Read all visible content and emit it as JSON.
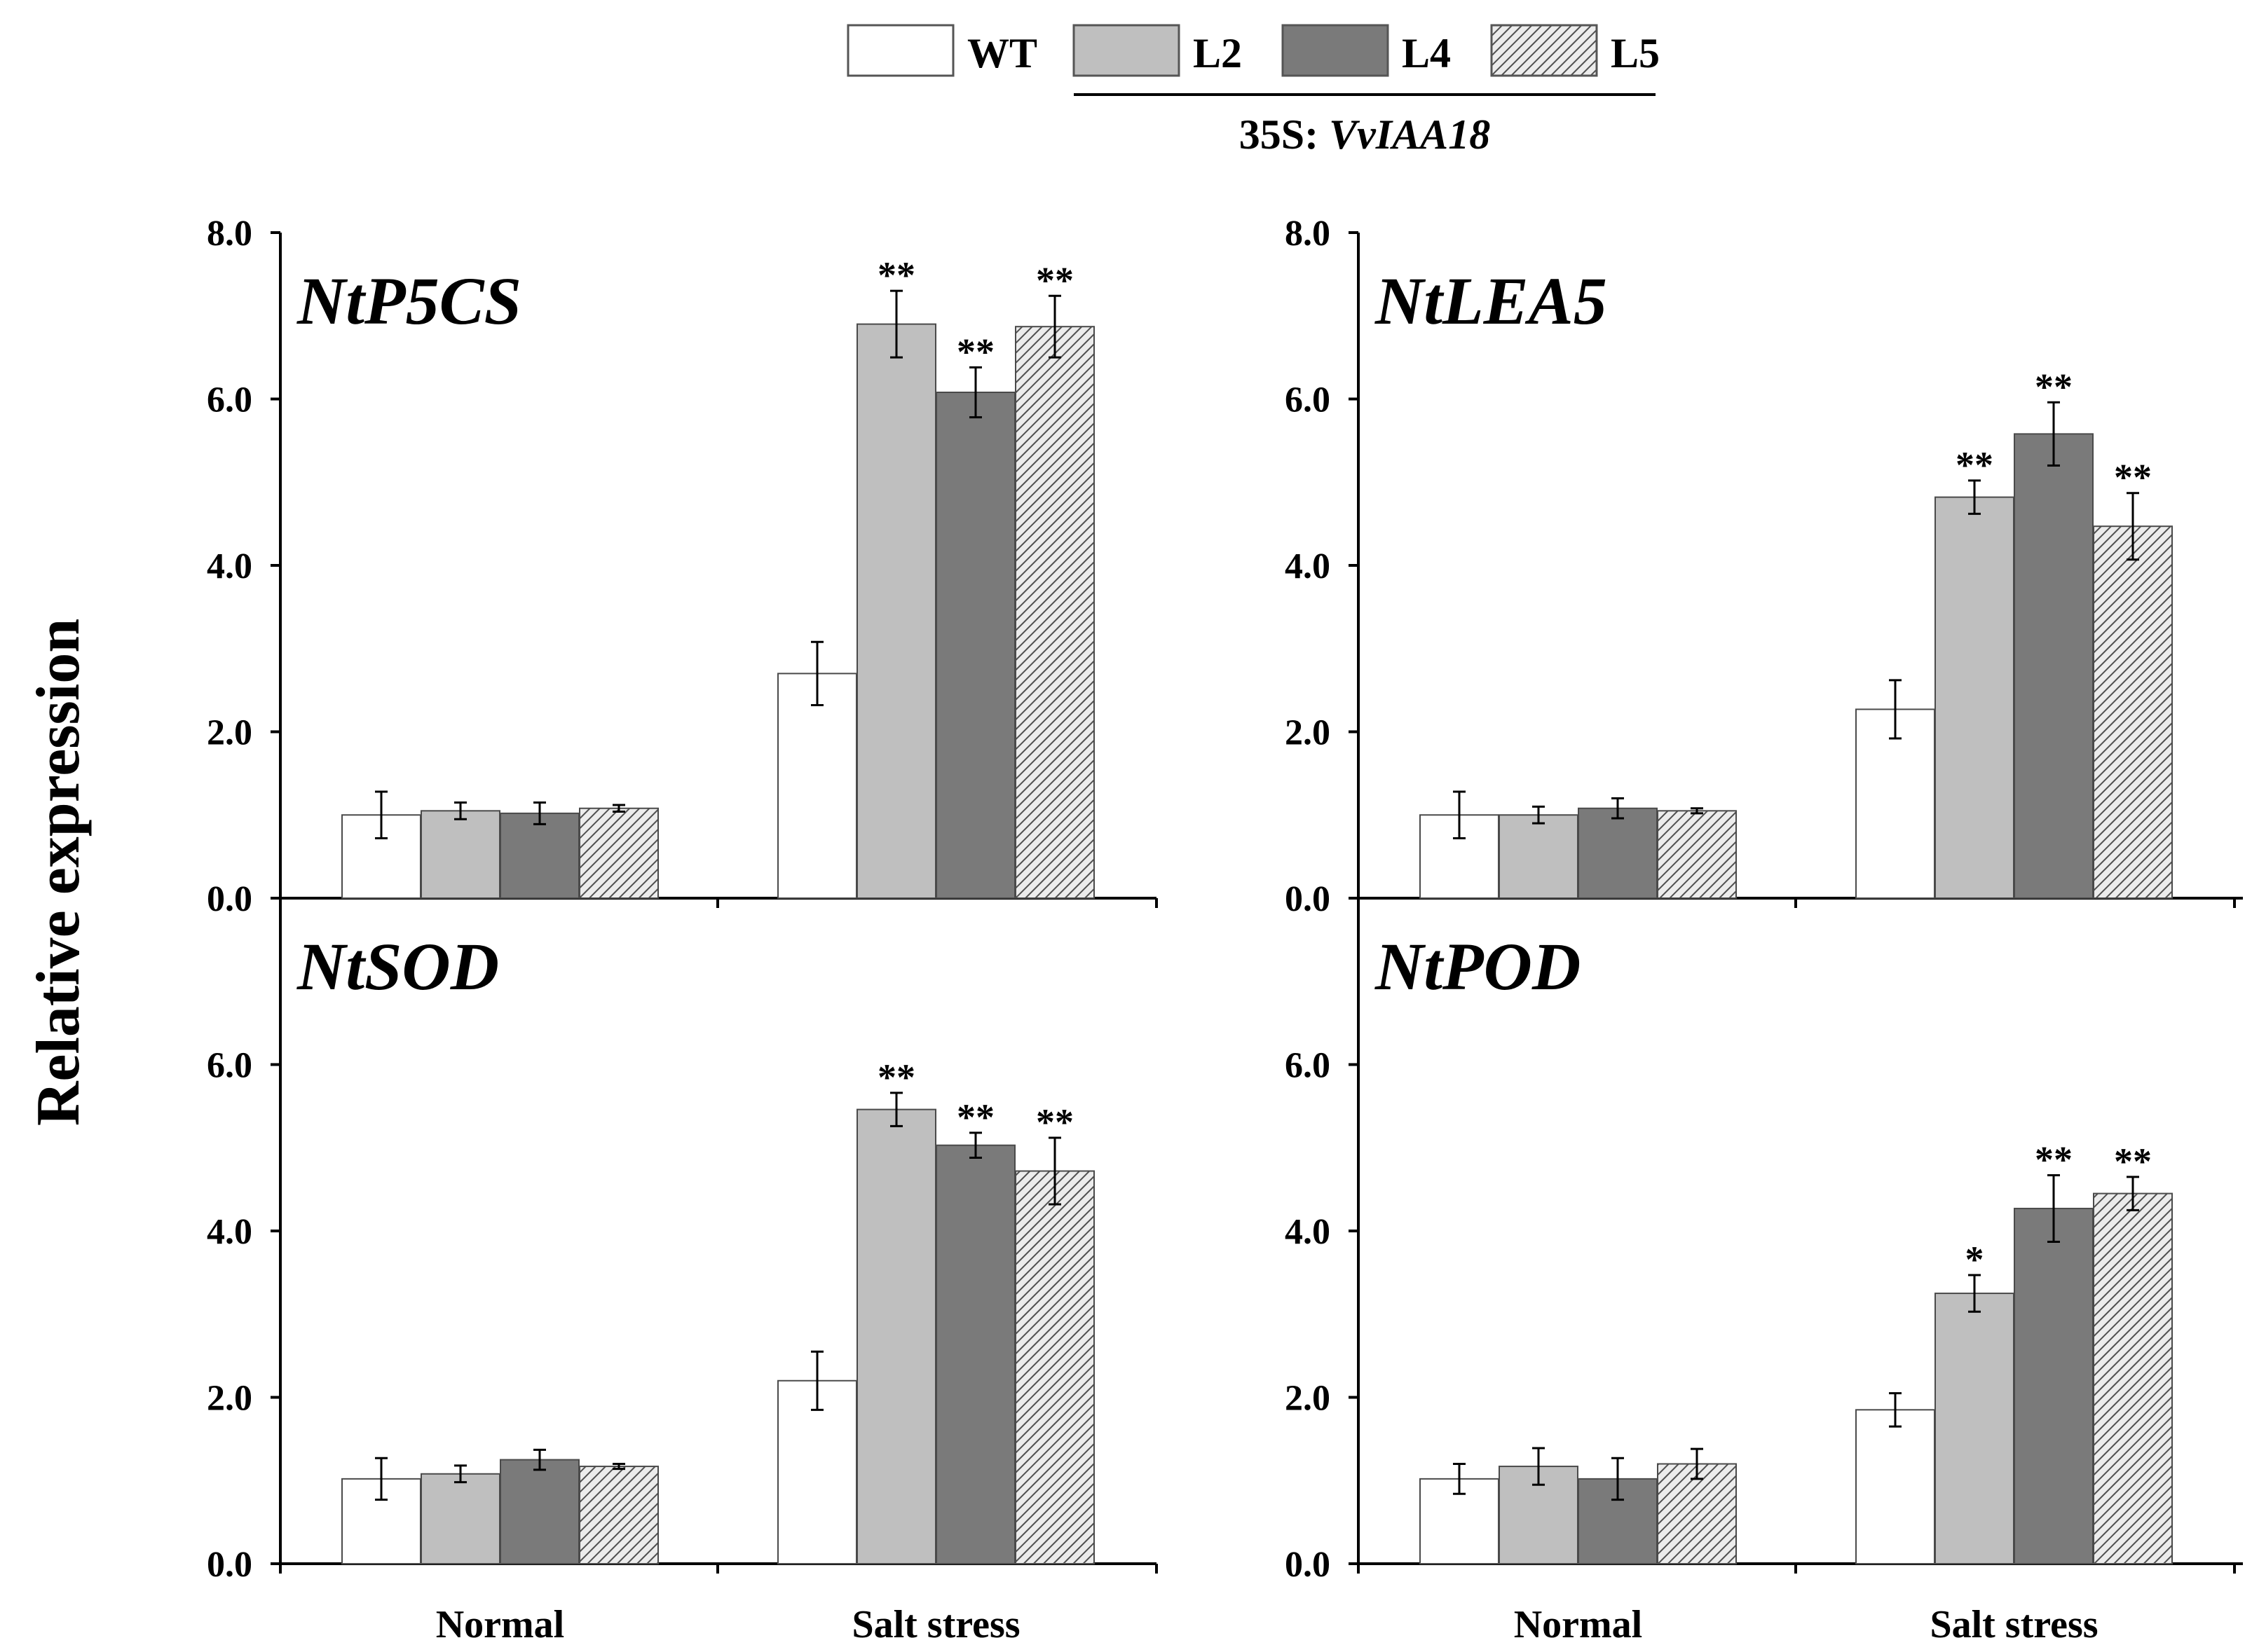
{
  "chart_data": {
    "type": "bar",
    "ylabel": "Relative expression",
    "categories": [
      "Normal",
      "Salt stress"
    ],
    "legend": {
      "entries": [
        "WT",
        "L2",
        "L4",
        "L5"
      ],
      "group_label_prefix": "35S: ",
      "group_label_gene": "VvIAA18"
    },
    "series_colors": {
      "WT": "#ffffff",
      "L2": "#bfbfbf",
      "L4": "#7a7a7a",
      "L5": "pattern"
    },
    "panels": [
      {
        "title": "NtP5CS",
        "ylim": [
          0,
          8
        ],
        "yticks": [
          0,
          2,
          4,
          6,
          8
        ],
        "ytick_labels": [
          "0.0",
          "2.0",
          "4.0",
          "6.0",
          "8.0"
        ],
        "series": [
          {
            "name": "WT",
            "values": [
              1.0,
              2.7
            ],
            "errors": [
              0.28,
              0.38
            ],
            "sig": [
              "",
              ""
            ]
          },
          {
            "name": "L2",
            "values": [
              1.05,
              6.9
            ],
            "errors": [
              0.1,
              0.4
            ],
            "sig": [
              "",
              "**"
            ]
          },
          {
            "name": "L4",
            "values": [
              1.02,
              6.08
            ],
            "errors": [
              0.13,
              0.3
            ],
            "sig": [
              "",
              "**"
            ]
          },
          {
            "name": "L5",
            "values": [
              1.08,
              6.87
            ],
            "errors": [
              0.04,
              0.37
            ],
            "sig": [
              "",
              "**"
            ]
          }
        ]
      },
      {
        "title": "NtLEA5",
        "ylim": [
          0,
          8
        ],
        "yticks": [
          0,
          2,
          4,
          6,
          8
        ],
        "ytick_labels": [
          "0.0",
          "2.0",
          "4.0",
          "6.0",
          "8.0"
        ],
        "series": [
          {
            "name": "WT",
            "values": [
              1.0,
              2.27
            ],
            "errors": [
              0.28,
              0.35
            ],
            "sig": [
              "",
              ""
            ]
          },
          {
            "name": "L2",
            "values": [
              1.0,
              4.82
            ],
            "errors": [
              0.1,
              0.2
            ],
            "sig": [
              "",
              "**"
            ]
          },
          {
            "name": "L4",
            "values": [
              1.08,
              5.58
            ],
            "errors": [
              0.12,
              0.38
            ],
            "sig": [
              "",
              "**"
            ]
          },
          {
            "name": "L5",
            "values": [
              1.05,
              4.47
            ],
            "errors": [
              0.03,
              0.4
            ],
            "sig": [
              "",
              "**"
            ]
          }
        ]
      },
      {
        "title": "NtSOD",
        "ylim": [
          0,
          8
        ],
        "yticks": [
          0,
          2,
          4,
          6
        ],
        "ytick_labels": [
          "0.0",
          "2.0",
          "4.0",
          "6.0"
        ],
        "series": [
          {
            "name": "WT",
            "values": [
              1.02,
              2.2
            ],
            "errors": [
              0.25,
              0.35
            ],
            "sig": [
              "",
              ""
            ]
          },
          {
            "name": "L2",
            "values": [
              1.08,
              5.46
            ],
            "errors": [
              0.1,
              0.2
            ],
            "sig": [
              "",
              "**"
            ]
          },
          {
            "name": "L4",
            "values": [
              1.25,
              5.03
            ],
            "errors": [
              0.12,
              0.15
            ],
            "sig": [
              "",
              "**"
            ]
          },
          {
            "name": "L5",
            "values": [
              1.17,
              4.72
            ],
            "errors": [
              0.03,
              0.4
            ],
            "sig": [
              "",
              "**"
            ]
          }
        ]
      },
      {
        "title": "NtPOD",
        "ylim": [
          0,
          8
        ],
        "yticks": [
          0,
          2,
          4,
          6
        ],
        "ytick_labels": [
          "0.0",
          "2.0",
          "4.0",
          "6.0"
        ],
        "series": [
          {
            "name": "WT",
            "values": [
              1.02,
              1.85
            ],
            "errors": [
              0.18,
              0.2
            ],
            "sig": [
              "",
              ""
            ]
          },
          {
            "name": "L2",
            "values": [
              1.17,
              3.25
            ],
            "errors": [
              0.22,
              0.22
            ],
            "sig": [
              "",
              "*"
            ]
          },
          {
            "name": "L4",
            "values": [
              1.02,
              4.27
            ],
            "errors": [
              0.25,
              0.4
            ],
            "sig": [
              "",
              "**"
            ]
          },
          {
            "name": "L5",
            "values": [
              1.2,
              4.45
            ],
            "errors": [
              0.18,
              0.2
            ],
            "sig": [
              "",
              "**"
            ]
          }
        ]
      }
    ]
  }
}
